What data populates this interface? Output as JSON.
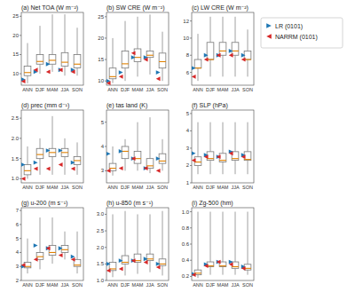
{
  "chart_data": [
    {
      "type": "box",
      "title": "(a)  Net TOA (W m⁻²)",
      "categories": [
        "ANN",
        "DJF",
        "MAM",
        "JJA",
        "SON"
      ],
      "q1": [
        9.5,
        12.5,
        12.5,
        12.0,
        11.5
      ],
      "median": [
        10.3,
        13.2,
        13.5,
        13.0,
        12.5
      ],
      "q3": [
        12.0,
        15.0,
        15.0,
        15.5,
        15.0
      ],
      "whisker_lo": [
        7.5,
        10.0,
        10.5,
        9.5,
        9.5
      ],
      "whisker_hi": [
        18.0,
        22.5,
        25.5,
        25.5,
        22.0
      ],
      "series": [
        {
          "name": "LR (0101)",
          "color": "#1f77b4",
          "marker": "triangle-right",
          "values": [
            8.5,
            10.5,
            12.5,
            11.0,
            11.0
          ]
        },
        {
          "name": "NARRM (0101)",
          "color": "#d62728",
          "marker": "triangle-left",
          "values": [
            8.0,
            11.0,
            10.5,
            11.0,
            10.5
          ]
        }
      ],
      "ylim": [
        7,
        26
      ],
      "yticks": [
        10,
        15,
        20,
        25
      ],
      "legend": "right"
    },
    {
      "type": "box",
      "title": "(b)  SW CRE (W m⁻²)",
      "categories": [
        "ANN",
        "DJF",
        "MAM",
        "JJA",
        "SON"
      ],
      "q1": [
        10.5,
        13.0,
        14.5,
        15.5,
        13.0
      ],
      "median": [
        11.0,
        14.0,
        15.5,
        16.0,
        14.5
      ],
      "q3": [
        13.0,
        17.0,
        17.5,
        17.0,
        16.5
      ],
      "whisker_lo": [
        9.5,
        10.0,
        11.0,
        11.5,
        10.0
      ],
      "whisker_hi": [
        20.0,
        24.0,
        25.0,
        25.5,
        21.5
      ],
      "series": [
        {
          "name": "LR (0101)",
          "color": "#1f77b4",
          "marker": "triangle-right",
          "values": [
            10.0,
            12.0,
            15.5,
            15.5,
            12.0
          ]
        },
        {
          "name": "NARRM (0101)",
          "color": "#d62728",
          "marker": "triangle-left",
          "values": [
            9.5,
            11.0,
            16.5,
            15.0,
            10.5
          ]
        }
      ],
      "ylim": [
        9,
        26
      ],
      "yticks": [
        10,
        15,
        20,
        25
      ]
    },
    {
      "type": "box",
      "title": "(c)  LW CRE (W m⁻²)",
      "categories": [
        "ANN",
        "DJF",
        "MAM",
        "JJA",
        "SON"
      ],
      "q1": [
        6.5,
        7.5,
        8.0,
        8.0,
        7.5
      ],
      "median": [
        6.5,
        7.5,
        8.5,
        8.5,
        7.5
      ],
      "q3": [
        7.5,
        9.5,
        9.5,
        9.5,
        8.5
      ],
      "whisker_lo": [
        5.0,
        5.5,
        5.5,
        5.5,
        5.5
      ],
      "whisker_hi": [
        10.5,
        12.5,
        12.5,
        12.5,
        11.0
      ],
      "series": [
        {
          "name": "LR (0101)",
          "color": "#1f77b4",
          "marker": "triangle-right",
          "values": [
            6.5,
            8.0,
            8.0,
            8.5,
            8.0
          ]
        },
        {
          "name": "NARRM (0101)",
          "color": "#d62728",
          "marker": "triangle-left",
          "values": [
            5.5,
            7.5,
            8.0,
            8.0,
            7.5
          ]
        }
      ],
      "ylim": [
        4.5,
        13
      ],
      "yticks": [
        6,
        8,
        10,
        12
      ]
    },
    {
      "type": "box",
      "title": "(d)  prec (mm d⁻¹)",
      "categories": [
        "ANN",
        "DJF",
        "MAM",
        "JJA",
        "SON"
      ],
      "q1": [
        1.1,
        1.5,
        1.55,
        1.55,
        1.35
      ],
      "median": [
        1.2,
        1.6,
        1.65,
        1.65,
        1.45
      ],
      "q3": [
        1.35,
        1.75,
        1.75,
        1.75,
        1.55
      ],
      "whisker_lo": [
        1.0,
        1.1,
        1.1,
        1.1,
        1.1
      ],
      "whisker_hi": [
        1.8,
        2.0,
        2.55,
        2.0,
        1.9
      ],
      "series": [
        {
          "name": "LR (0101)",
          "color": "#1f77b4",
          "marker": "triangle-right",
          "values": [
            1.35,
            1.4,
            1.7,
            1.7,
            1.4
          ]
        },
        {
          "name": "NARRM (0101)",
          "color": "#d62728",
          "marker": "triangle-left",
          "values": [
            1.0,
            1.25,
            1.25,
            1.35,
            1.25
          ]
        }
      ],
      "ylim": [
        0.9,
        2.7
      ],
      "yticks": [
        {
          "value": 1.0,
          "label": "1.0"
        },
        1.5,
        {
          "value": 2.0,
          "label": "2.0"
        },
        2.5
      ]
    },
    {
      "type": "box",
      "title": "(e)  tas land (K)",
      "categories": [
        "ANN",
        "DJF",
        "MAM",
        "JJA",
        "SON"
      ],
      "q1": [
        3.0,
        3.5,
        3.3,
        3.1,
        3.3
      ],
      "median": [
        3.1,
        3.8,
        3.5,
        3.2,
        3.4
      ],
      "q3": [
        3.3,
        4.0,
        3.8,
        3.5,
        3.7
      ],
      "whisker_lo": [
        2.8,
        3.0,
        3.0,
        2.9,
        3.0
      ],
      "whisker_hi": [
        4.0,
        4.3,
        5.0,
        5.2,
        4.3
      ],
      "series": [
        {
          "name": "LR (0101)",
          "color": "#1f77b4",
          "marker": "triangle-right",
          "values": [
            3.7,
            3.8,
            3.5,
            3.1,
            3.5
          ]
        },
        {
          "name": "NARRM (0101)",
          "color": "#d62728",
          "marker": "triangle-left",
          "values": [
            3.0,
            3.1,
            3.5,
            3.1,
            3.0
          ]
        }
      ],
      "ylim": [
        2.5,
        5.5
      ],
      "yticks": [
        3,
        4,
        5
      ]
    },
    {
      "type": "box",
      "title": "(f)  SLP (hPa)",
      "categories": [
        "ANN",
        "DJF",
        "MAM",
        "JJA",
        "SON"
      ],
      "q1": [
        2.0,
        2.3,
        2.2,
        2.3,
        2.3
      ],
      "median": [
        2.2,
        2.4,
        2.3,
        2.4,
        2.35
      ],
      "q3": [
        2.5,
        2.8,
        2.7,
        2.8,
        2.8
      ],
      "whisker_lo": [
        1.5,
        1.5,
        1.5,
        1.5,
        1.5
      ],
      "whisker_hi": [
        4.5,
        4.5,
        4.5,
        4.5,
        4.5
      ],
      "series": [
        {
          "name": "LR (0101)",
          "color": "#1f77b4",
          "marker": "triangle-right",
          "values": [
            2.7,
            2.6,
            2.5,
            2.8,
            2.6
          ]
        },
        {
          "name": "NARRM (0101)",
          "color": "#d62728",
          "marker": "triangle-left",
          "values": [
            2.3,
            2.5,
            2.5,
            2.7,
            2.5
          ]
        }
      ],
      "ylim": [
        1.0,
        5.2
      ],
      "yticks": [
        1,
        2,
        3,
        4,
        5
      ]
    },
    {
      "type": "box",
      "title": "(g)  u-200 (m s⁻¹)",
      "categories": [
        "ANN",
        "DJF",
        "MAM",
        "JJA",
        "SON"
      ],
      "q1": [
        2.9,
        3.5,
        3.8,
        4.0,
        3.0
      ],
      "median": [
        3.0,
        3.7,
        4.0,
        4.2,
        3.1
      ],
      "q3": [
        3.3,
        4.0,
        4.5,
        4.5,
        3.5
      ],
      "whisker_lo": [
        2.5,
        2.8,
        3.2,
        3.5,
        2.5
      ],
      "whisker_hi": [
        5.0,
        6.5,
        6.5,
        5.5,
        5.5
      ],
      "series": [
        {
          "name": "LR (0101)",
          "color": "#1f77b4",
          "marker": "triangle-right",
          "values": [
            3.0,
            4.5,
            4.3,
            4.3,
            3.7
          ]
        },
        {
          "name": "NARRM (0101)",
          "color": "#d62728",
          "marker": "triangle-left",
          "values": [
            3.1,
            3.5,
            4.3,
            3.8,
            3.5
          ]
        }
      ],
      "ylim": [
        2.0,
        7.2
      ],
      "yticks": [
        2,
        3,
        4,
        5,
        6,
        7
      ]
    },
    {
      "type": "box",
      "title": "(h)  u-850 (m s⁻¹)",
      "categories": [
        "ANN",
        "DJF",
        "MAM",
        "JJA",
        "SON"
      ],
      "q1": [
        1.3,
        1.5,
        1.55,
        1.6,
        1.45
      ],
      "median": [
        1.35,
        1.55,
        1.6,
        1.65,
        1.5
      ],
      "q3": [
        1.55,
        1.75,
        1.8,
        1.8,
        1.65
      ],
      "whisker_lo": [
        1.1,
        1.15,
        1.2,
        1.25,
        1.15
      ],
      "whisker_hi": [
        3.0,
        3.1,
        3.0,
        3.0,
        3.1
      ],
      "series": [
        {
          "name": "LR (0101)",
          "color": "#1f77b4",
          "marker": "triangle-right",
          "values": [
            1.5,
            1.6,
            1.6,
            1.65,
            1.5
          ]
        },
        {
          "name": "NARRM (0101)",
          "color": "#d62728",
          "marker": "triangle-left",
          "values": [
            1.3,
            1.35,
            1.6,
            1.55,
            1.4
          ]
        }
      ],
      "ylim": [
        1.0,
        3.2
      ],
      "yticks": [
        {
          "value": 1.0,
          "label": "1.0"
        },
        1.5,
        {
          "value": 2.0,
          "label": "2.0"
        },
        2.5,
        {
          "value": 3.0,
          "label": "3.0"
        }
      ]
    },
    {
      "type": "box",
      "title": "(i)  Zg-500 (hm)",
      "categories": [
        "ANN",
        "DJF",
        "MAM",
        "JJA",
        "SON"
      ],
      "q1": [
        0.22,
        0.32,
        0.32,
        0.3,
        0.28
      ],
      "median": [
        0.24,
        0.33,
        0.33,
        0.32,
        0.3
      ],
      "q3": [
        0.28,
        0.38,
        0.38,
        0.38,
        0.35
      ],
      "whisker_lo": [
        0.18,
        0.22,
        0.22,
        0.22,
        0.22
      ],
      "whisker_hi": [
        1.0,
        1.0,
        1.0,
        1.0,
        1.0
      ],
      "series": [
        {
          "name": "LR (0101)",
          "color": "#1f77b4",
          "marker": "triangle-right",
          "values": [
            0.23,
            0.35,
            0.38,
            0.38,
            0.32
          ]
        },
        {
          "name": "NARRM (0101)",
          "color": "#d62728",
          "marker": "triangle-left",
          "values": [
            0.22,
            0.33,
            0.38,
            0.35,
            0.3
          ]
        }
      ],
      "ylim": [
        0.15,
        1.05
      ],
      "yticks": [
        0.2,
        0.4,
        0.6,
        0.8,
        {
          "value": 1.0,
          "label": "1.0"
        }
      ]
    }
  ]
}
